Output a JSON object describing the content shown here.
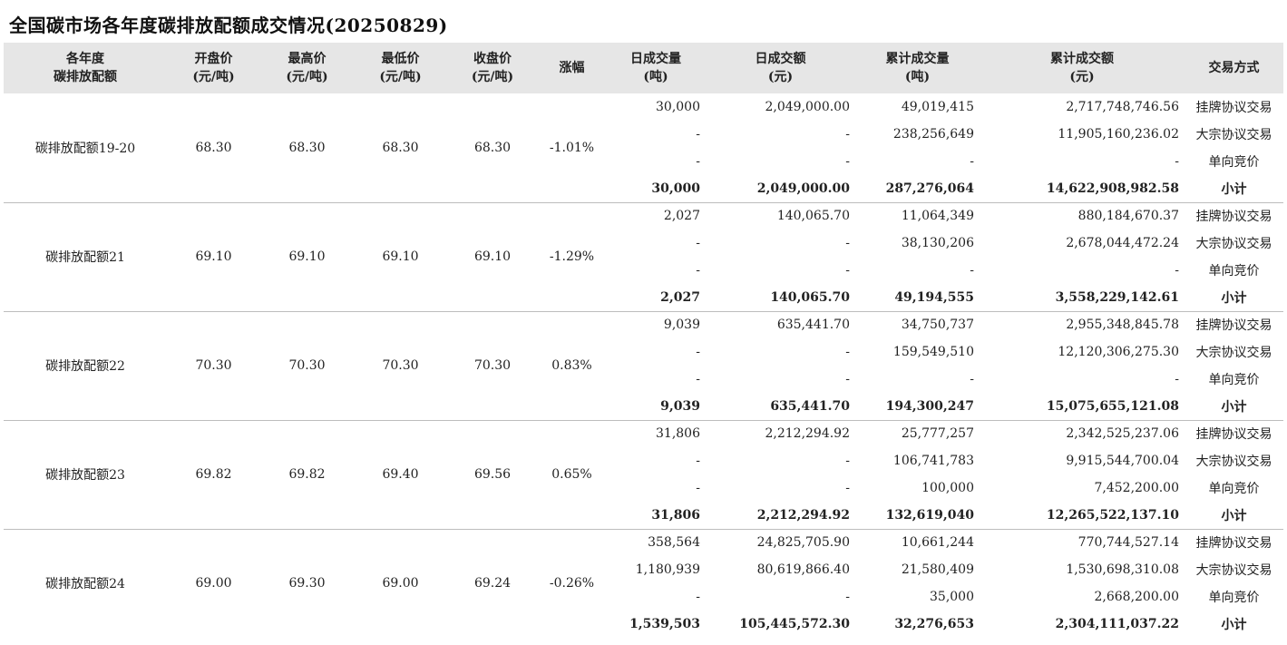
{
  "title": "全国碳市场各年度碳排放配额成交情况(20250829)",
  "headers": [
    {
      "line1": "各年度",
      "line2": "碳排放配额"
    },
    {
      "line1": "开盘价",
      "line2": "(元/吨)"
    },
    {
      "line1": "最高价",
      "line2": "(元/吨)"
    },
    {
      "line1": "最低价",
      "line2": "(元/吨)"
    },
    {
      "line1": "收盘价",
      "line2": "(元/吨)"
    },
    {
      "line1": "涨幅",
      "line2": ""
    },
    {
      "line1": "日成交量",
      "line2": "(吨)"
    },
    {
      "line1": "日成交额",
      "line2": "(元)"
    },
    {
      "line1": "累计成交量",
      "line2": "(吨)"
    },
    {
      "line1": "累计成交额",
      "line2": "(元)"
    },
    {
      "line1": "交易方式",
      "line2": ""
    }
  ],
  "groups": [
    {
      "name": "碳排放配额19-20",
      "open": "68.30",
      "high": "68.30",
      "low": "68.30",
      "close": "68.30",
      "change": "-1.01%",
      "rows": [
        {
          "dv": "30,000",
          "da": "2,049,000.00",
          "cv": "49,019,415",
          "ca": "2,717,748,746.56",
          "method": "挂牌协议交易"
        },
        {
          "dv": "-",
          "da": "-",
          "cv": "238,256,649",
          "ca": "11,905,160,236.02",
          "method": "大宗协议交易"
        },
        {
          "dv": "-",
          "da": "-",
          "cv": "-",
          "ca": "-",
          "method": "单向竞价"
        },
        {
          "dv": "30,000",
          "da": "2,049,000.00",
          "cv": "287,276,064",
          "ca": "14,622,908,982.58",
          "method": "小计"
        }
      ]
    },
    {
      "name": "碳排放配额21",
      "open": "69.10",
      "high": "69.10",
      "low": "69.10",
      "close": "69.10",
      "change": "-1.29%",
      "rows": [
        {
          "dv": "2,027",
          "da": "140,065.70",
          "cv": "11,064,349",
          "ca": "880,184,670.37",
          "method": "挂牌协议交易"
        },
        {
          "dv": "-",
          "da": "-",
          "cv": "38,130,206",
          "ca": "2,678,044,472.24",
          "method": "大宗协议交易"
        },
        {
          "dv": "-",
          "da": "-",
          "cv": "-",
          "ca": "-",
          "method": "单向竞价"
        },
        {
          "dv": "2,027",
          "da": "140,065.70",
          "cv": "49,194,555",
          "ca": "3,558,229,142.61",
          "method": "小计"
        }
      ]
    },
    {
      "name": "碳排放配额22",
      "open": "70.30",
      "high": "70.30",
      "low": "70.30",
      "close": "70.30",
      "change": "0.83%",
      "rows": [
        {
          "dv": "9,039",
          "da": "635,441.70",
          "cv": "34,750,737",
          "ca": "2,955,348,845.78",
          "method": "挂牌协议交易"
        },
        {
          "dv": "-",
          "da": "-",
          "cv": "159,549,510",
          "ca": "12,120,306,275.30",
          "method": "大宗协议交易"
        },
        {
          "dv": "-",
          "da": "-",
          "cv": "-",
          "ca": "-",
          "method": "单向竞价"
        },
        {
          "dv": "9,039",
          "da": "635,441.70",
          "cv": "194,300,247",
          "ca": "15,075,655,121.08",
          "method": "小计"
        }
      ]
    },
    {
      "name": "碳排放配额23",
      "open": "69.82",
      "high": "69.82",
      "low": "69.40",
      "close": "69.56",
      "change": "0.65%",
      "rows": [
        {
          "dv": "31,806",
          "da": "2,212,294.92",
          "cv": "25,777,257",
          "ca": "2,342,525,237.06",
          "method": "挂牌协议交易"
        },
        {
          "dv": "-",
          "da": "-",
          "cv": "106,741,783",
          "ca": "9,915,544,700.04",
          "method": "大宗协议交易"
        },
        {
          "dv": "-",
          "da": "-",
          "cv": "100,000",
          "ca": "7,452,200.00",
          "method": "单向竞价"
        },
        {
          "dv": "31,806",
          "da": "2,212,294.92",
          "cv": "132,619,040",
          "ca": "12,265,522,137.10",
          "method": "小计"
        }
      ]
    },
    {
      "name": "碳排放配额24",
      "open": "69.00",
      "high": "69.30",
      "low": "69.00",
      "close": "69.24",
      "change": "-0.26%",
      "rows": [
        {
          "dv": "358,564",
          "da": "24,825,705.90",
          "cv": "10,661,244",
          "ca": "770,744,527.14",
          "method": "挂牌协议交易"
        },
        {
          "dv": "1,180,939",
          "da": "80,619,866.40",
          "cv": "21,580,409",
          "ca": "1,530,698,310.08",
          "method": "大宗协议交易"
        },
        {
          "dv": "-",
          "da": "-",
          "cv": "35,000",
          "ca": "2,668,200.00",
          "method": "单向竞价"
        },
        {
          "dv": "1,539,503",
          "da": "105,445,572.30",
          "cv": "32,276,653",
          "ca": "2,304,111,037.22",
          "method": "小计"
        }
      ]
    }
  ]
}
